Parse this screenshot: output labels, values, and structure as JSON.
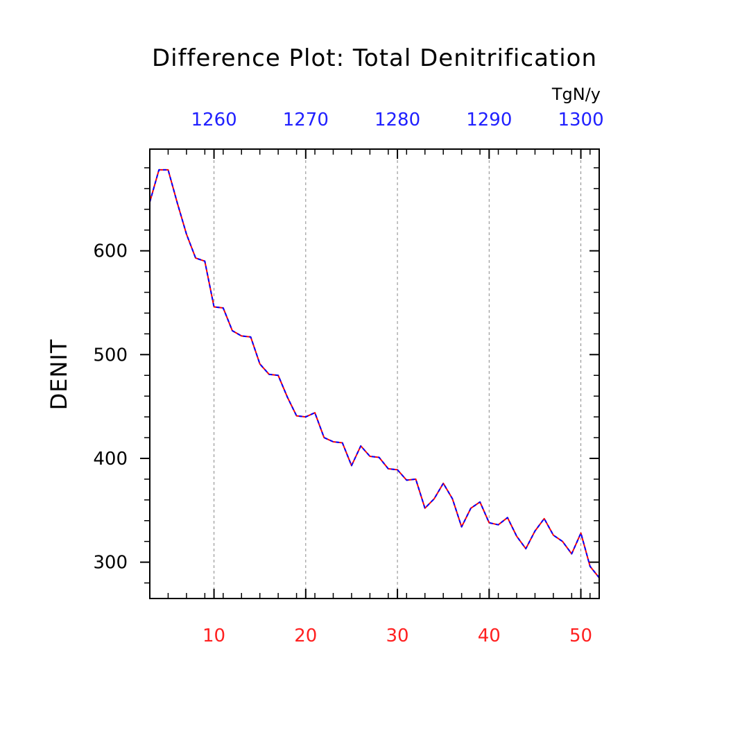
{
  "chart_data": {
    "type": "line",
    "title": "Difference Plot: Total Denitrification",
    "units": "TgN/y",
    "ylabel": "DENIT",
    "xlim": [
      3,
      52
    ],
    "ylim": [
      265,
      698
    ],
    "grid": "dashed vertical lines at bottom major ticks",
    "yticks": [
      300,
      400,
      500,
      600
    ],
    "xticks_bottom": [
      10,
      20,
      30,
      40,
      50
    ],
    "xticks_top": [
      1260,
      1270,
      1280,
      1290,
      1300
    ],
    "colors": {
      "bottom_axis_labels": "#ff2020",
      "top_axis_labels": "#2020ff",
      "series_a": "#ff0000",
      "series_b": "#0000ff"
    },
    "series": [
      {
        "x": [
          3,
          4,
          5,
          6,
          7,
          8,
          9,
          10,
          11,
          12,
          13,
          14,
          15,
          16,
          17,
          18,
          19,
          20,
          21,
          22,
          23,
          24,
          25,
          26,
          27,
          28,
          29,
          30,
          31,
          32,
          33,
          34,
          35,
          36,
          37,
          38,
          39,
          40,
          41,
          42,
          43,
          44,
          45,
          46,
          47,
          48,
          49,
          50,
          51,
          52
        ],
        "values": [
          647,
          678,
          678,
          646,
          616,
          593,
          590,
          546,
          545,
          523,
          518,
          517,
          491,
          481,
          480,
          459,
          441,
          440,
          444,
          420,
          416,
          415,
          393,
          412,
          402,
          401,
          390,
          389,
          379,
          380,
          352,
          361,
          376,
          361,
          334,
          352,
          358,
          338,
          336,
          343,
          325,
          313,
          330,
          342,
          326,
          320,
          308,
          328,
          296,
          285
        ]
      },
      {
        "x": [
          3,
          4,
          5,
          6,
          7,
          8,
          9,
          10,
          11,
          12,
          13,
          14,
          15,
          16,
          17,
          18,
          19,
          20,
          21,
          22,
          23,
          24,
          25,
          26,
          27,
          28,
          29,
          30,
          31,
          32,
          33,
          34,
          35,
          36,
          37,
          38,
          39,
          40,
          41,
          42,
          43,
          44,
          45,
          46,
          47,
          48,
          49,
          50,
          51,
          52
        ],
        "values": [
          647,
          678,
          678,
          646,
          616,
          593,
          590,
          546,
          545,
          523,
          518,
          517,
          491,
          481,
          480,
          459,
          441,
          440,
          444,
          420,
          416,
          415,
          393,
          412,
          402,
          401,
          390,
          389,
          379,
          380,
          352,
          361,
          376,
          361,
          334,
          352,
          358,
          338,
          336,
          343,
          325,
          313,
          330,
          342,
          326,
          320,
          308,
          328,
          296,
          285
        ]
      }
    ]
  }
}
